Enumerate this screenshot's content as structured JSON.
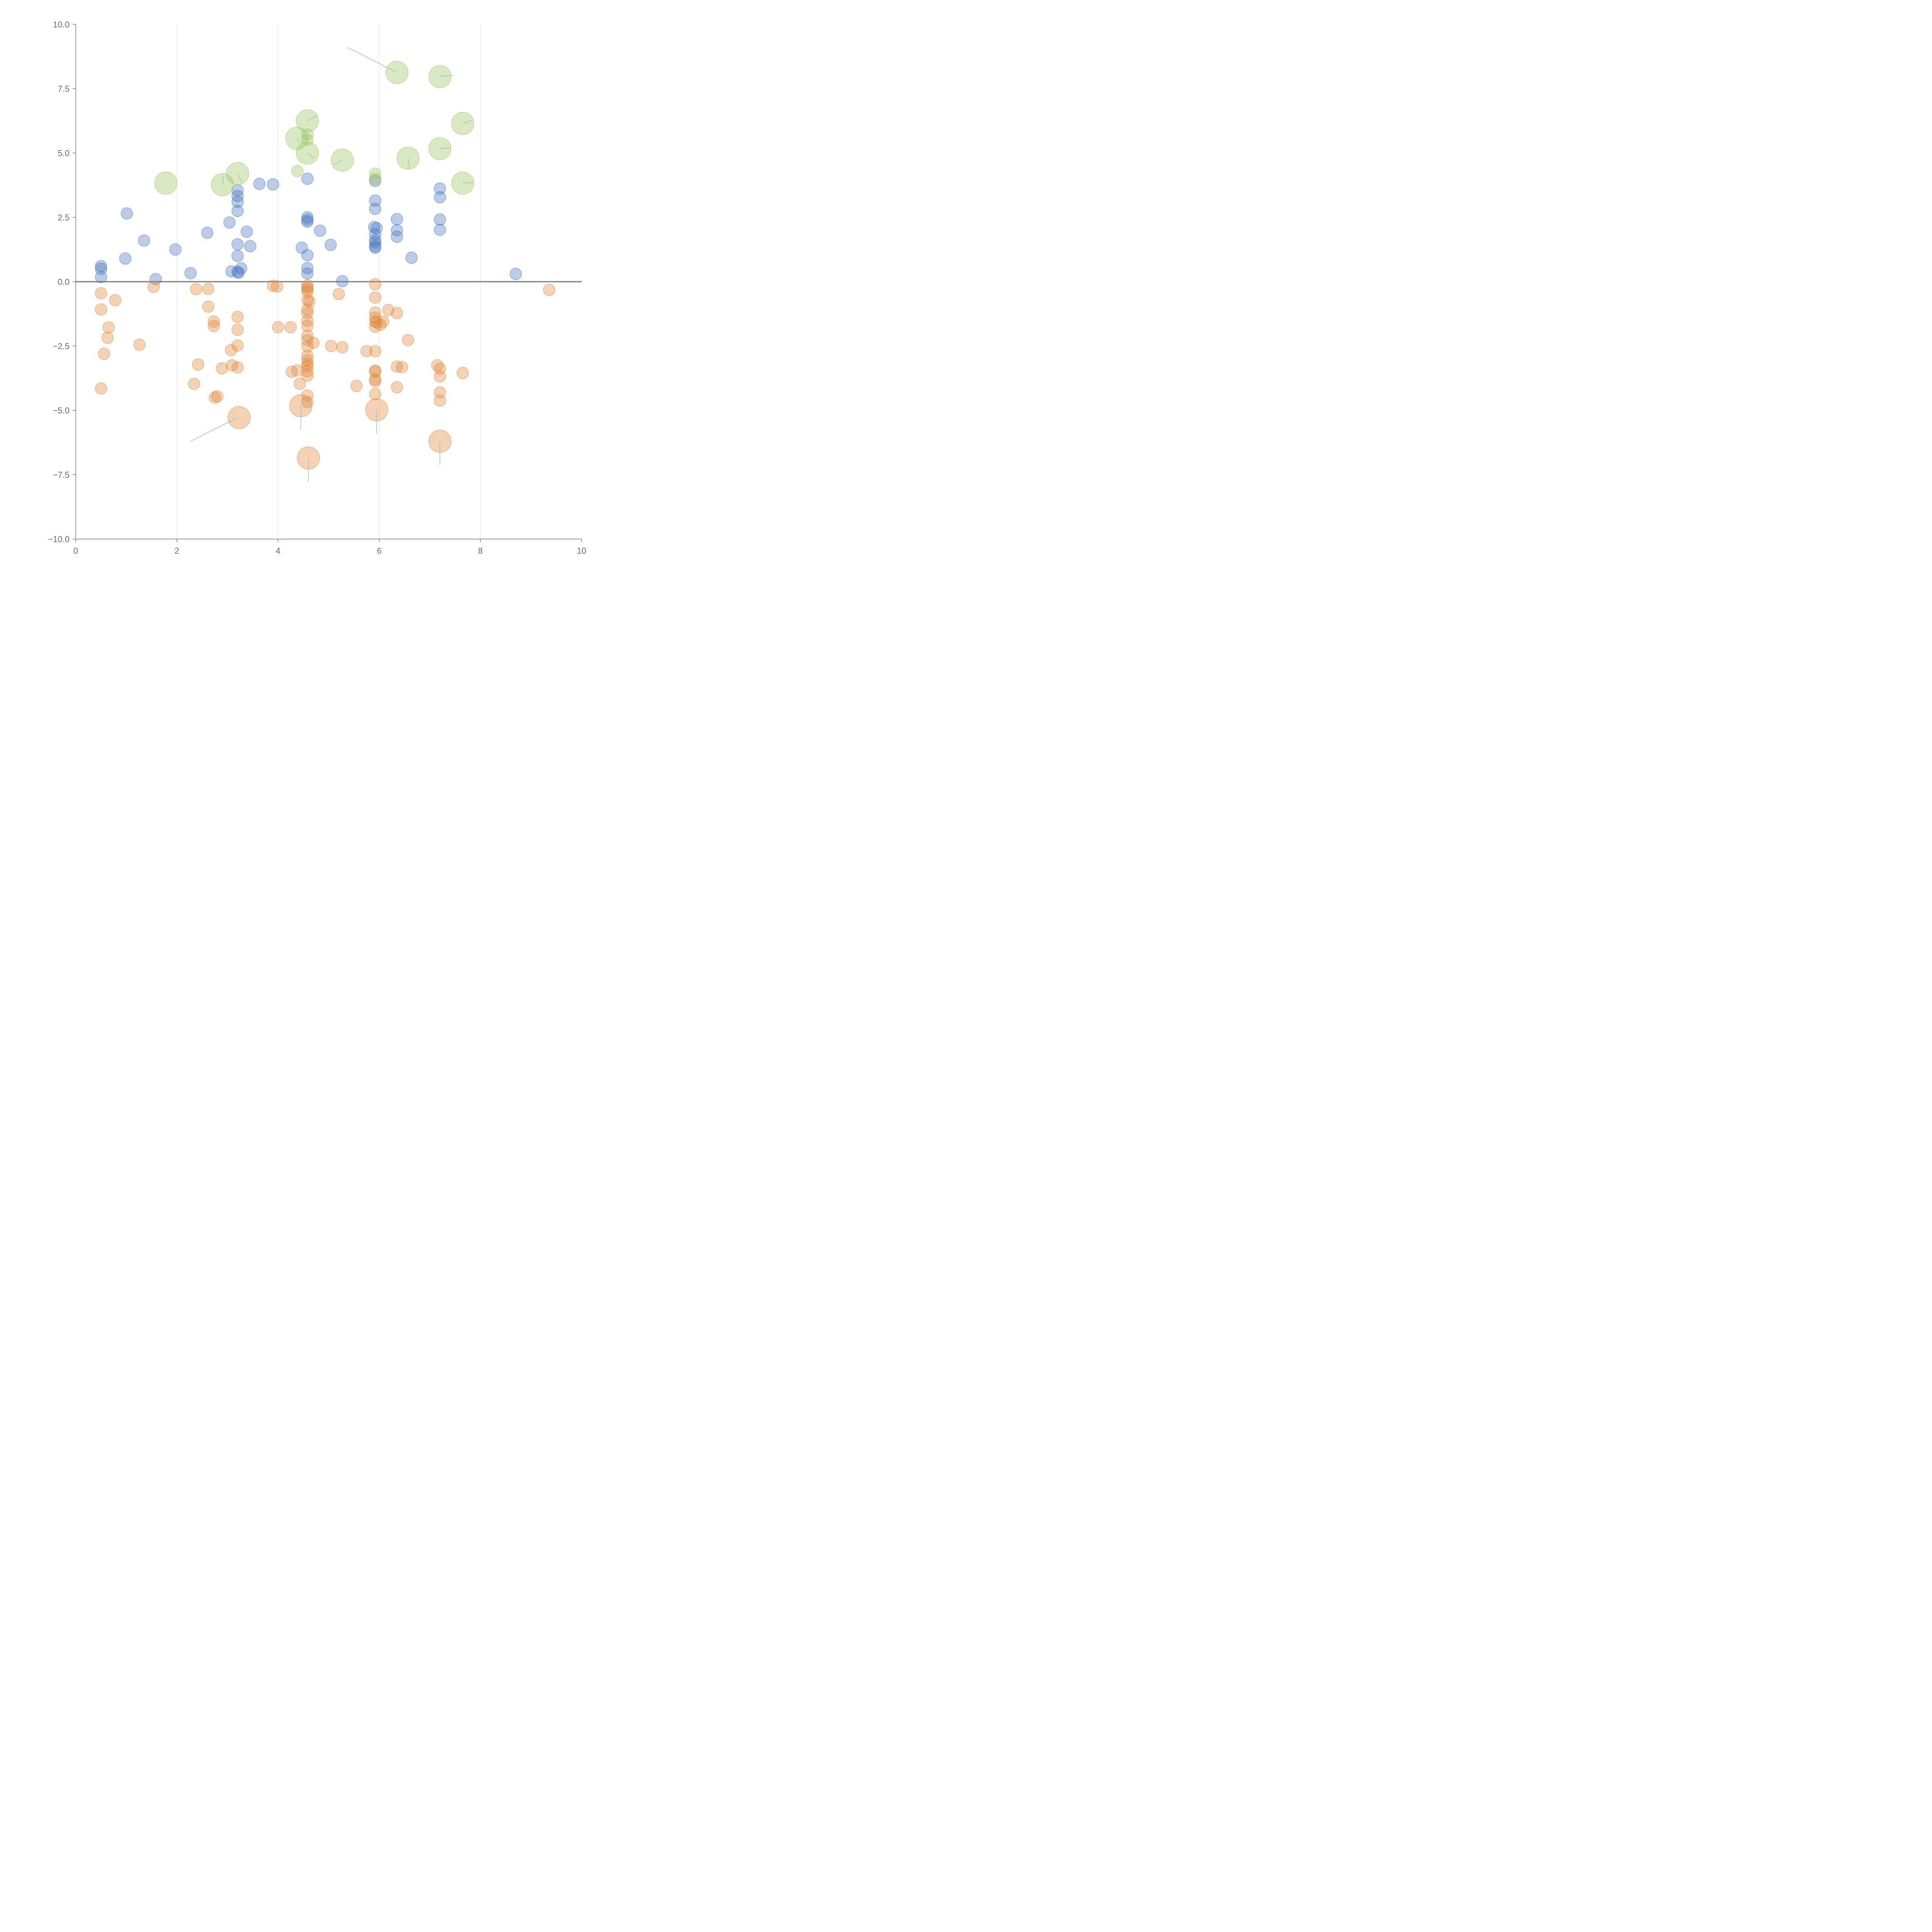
{
  "chart_data": {
    "type": "scatter",
    "title": "",
    "xlabel": "",
    "ylabel": "",
    "xlim": [
      0,
      10
    ],
    "ylim": [
      -10,
      10
    ],
    "grid": "vertical",
    "x_ticks": [
      0,
      2,
      4,
      6,
      8,
      10
    ],
    "x_tick_labels": [
      "0",
      "2",
      "4",
      "6",
      "8",
      "10"
    ],
    "y_ticks": [
      10,
      7.5,
      5,
      2.5,
      0,
      -2.5,
      -5,
      -7.5,
      -10
    ],
    "y_tick_labels": [
      "10.0",
      "7.5",
      "5.0",
      "2.5",
      "0.0",
      "−2.5",
      "−5.0",
      "−7.5",
      "−10.0"
    ],
    "reference_line_y": 0,
    "colors": {
      "blue": "#4a78c0",
      "orange": "#e08a3e",
      "green": "#9cc460"
    },
    "series": [
      {
        "name": "blue",
        "color": "#4a78c0",
        "size": "small",
        "points": [
          [
            0.5,
            0.6
          ],
          [
            0.5,
            0.5
          ],
          [
            0.5,
            0.18
          ],
          [
            0.98,
            0.9
          ],
          [
            1.01,
            2.65
          ],
          [
            1.35,
            1.6
          ],
          [
            1.58,
            0.1
          ],
          [
            1.97,
            1.25
          ],
          [
            2.27,
            0.33
          ],
          [
            2.6,
            1.9
          ],
          [
            3.04,
            2.3
          ],
          [
            3.08,
            0.4
          ],
          [
            3.2,
            3.55
          ],
          [
            3.2,
            3.33
          ],
          [
            3.2,
            3.1
          ],
          [
            3.2,
            2.75
          ],
          [
            3.2,
            1.45
          ],
          [
            3.2,
            1.0
          ],
          [
            3.2,
            0.38
          ],
          [
            3.22,
            0.35
          ],
          [
            3.27,
            0.52
          ],
          [
            3.38,
            1.94
          ],
          [
            3.45,
            1.38
          ],
          [
            3.63,
            3.8
          ],
          [
            3.9,
            3.78
          ],
          [
            4.47,
            1.32
          ],
          [
            4.58,
            4.0
          ],
          [
            4.58,
            2.5
          ],
          [
            4.58,
            2.4
          ],
          [
            4.58,
            2.33
          ],
          [
            4.58,
            1.03
          ],
          [
            4.58,
            0.53
          ],
          [
            4.58,
            0.32
          ],
          [
            4.83,
            1.98
          ],
          [
            5.04,
            1.43
          ],
          [
            5.27,
            0.02
          ],
          [
            5.9,
            2.12
          ],
          [
            5.92,
            3.92
          ],
          [
            5.92,
            3.15
          ],
          [
            5.92,
            2.83
          ],
          [
            5.92,
            1.85
          ],
          [
            5.92,
            1.62
          ],
          [
            5.92,
            1.52
          ],
          [
            5.92,
            1.38
          ],
          [
            5.92,
            1.32
          ],
          [
            5.95,
            2.08
          ],
          [
            6.35,
            2.43
          ],
          [
            6.35,
            2.0
          ],
          [
            6.35,
            1.75
          ],
          [
            6.64,
            0.93
          ],
          [
            7.2,
            3.62
          ],
          [
            7.2,
            3.28
          ],
          [
            7.2,
            2.42
          ],
          [
            7.2,
            2.02
          ],
          [
            8.7,
            0.3
          ]
        ]
      },
      {
        "name": "orange",
        "color": "#e08a3e",
        "size": "small",
        "points": [
          [
            0.5,
            -0.45
          ],
          [
            0.5,
            -1.08
          ],
          [
            0.5,
            -4.15
          ],
          [
            0.56,
            -2.8
          ],
          [
            0.63,
            -2.18
          ],
          [
            0.65,
            -1.78
          ],
          [
            0.78,
            -0.72
          ],
          [
            1.26,
            -2.45
          ],
          [
            1.54,
            -0.2
          ],
          [
            2.34,
            -3.97
          ],
          [
            2.38,
            -0.29
          ],
          [
            2.42,
            -3.22
          ],
          [
            2.62,
            -0.28
          ],
          [
            2.62,
            -0.97
          ],
          [
            2.73,
            -1.55
          ],
          [
            2.73,
            -1.72
          ],
          [
            2.75,
            -4.5
          ],
          [
            2.8,
            -4.46
          ],
          [
            2.89,
            -3.37
          ],
          [
            3.07,
            -2.66
          ],
          [
            3.09,
            -3.25
          ],
          [
            3.2,
            -1.37
          ],
          [
            3.2,
            -1.87
          ],
          [
            3.2,
            -2.48
          ],
          [
            3.2,
            -3.33
          ],
          [
            3.9,
            -0.16
          ],
          [
            3.98,
            -0.19
          ],
          [
            4.0,
            -1.77
          ],
          [
            4.25,
            -1.77
          ],
          [
            4.27,
            -3.5
          ],
          [
            4.38,
            -3.45
          ],
          [
            4.43,
            -3.97
          ],
          [
            4.58,
            -0.15
          ],
          [
            4.58,
            -0.22
          ],
          [
            4.58,
            -0.3
          ],
          [
            4.58,
            -0.4
          ],
          [
            4.58,
            -0.72
          ],
          [
            4.58,
            -1.08
          ],
          [
            4.58,
            -1.22
          ],
          [
            4.58,
            -1.52
          ],
          [
            4.58,
            -1.72
          ],
          [
            4.58,
            -2.1
          ],
          [
            4.58,
            -2.27
          ],
          [
            4.58,
            -2.52
          ],
          [
            4.58,
            -2.88
          ],
          [
            4.58,
            -3.05
          ],
          [
            4.58,
            -3.2
          ],
          [
            4.58,
            -3.3
          ],
          [
            4.58,
            -3.48
          ],
          [
            4.58,
            -3.65
          ],
          [
            4.58,
            -4.42
          ],
          [
            4.58,
            -4.68
          ],
          [
            4.62,
            -0.77
          ],
          [
            4.7,
            -2.38
          ],
          [
            5.05,
            -2.5
          ],
          [
            5.2,
            -0.48
          ],
          [
            5.27,
            -2.55
          ],
          [
            5.55,
            -4.05
          ],
          [
            5.75,
            -2.7
          ],
          [
            5.92,
            -0.1
          ],
          [
            5.92,
            -0.62
          ],
          [
            5.92,
            -1.2
          ],
          [
            5.92,
            -1.4
          ],
          [
            5.92,
            -1.55
          ],
          [
            5.92,
            -1.75
          ],
          [
            5.92,
            -2.7
          ],
          [
            5.92,
            -3.45
          ],
          [
            5.92,
            -3.5
          ],
          [
            5.92,
            -3.8
          ],
          [
            5.92,
            -3.87
          ],
          [
            5.92,
            -4.37
          ],
          [
            5.95,
            -1.58
          ],
          [
            6.02,
            -1.67
          ],
          [
            6.08,
            -1.55
          ],
          [
            6.18,
            -1.1
          ],
          [
            6.35,
            -1.22
          ],
          [
            6.35,
            -3.3
          ],
          [
            6.35,
            -4.1
          ],
          [
            6.45,
            -3.32
          ],
          [
            6.57,
            -2.27
          ],
          [
            7.15,
            -3.25
          ],
          [
            7.2,
            -3.38
          ],
          [
            7.2,
            -3.68
          ],
          [
            7.2,
            -4.3
          ],
          [
            7.2,
            -4.62
          ],
          [
            7.65,
            -3.55
          ],
          [
            9.36,
            -0.32
          ]
        ]
      },
      {
        "name": "orange",
        "color": "#e08a3e",
        "size": "large",
        "points": [
          [
            3.23,
            -5.28
          ],
          [
            4.45,
            -4.82
          ],
          [
            4.6,
            -6.85
          ],
          [
            5.95,
            -4.98
          ],
          [
            7.2,
            -6.2
          ]
        ]
      },
      {
        "name": "green",
        "color": "#9cc460",
        "size": "small",
        "points": [
          [
            4.38,
            4.3
          ],
          [
            4.58,
            5.72
          ],
          [
            4.58,
            5.52
          ],
          [
            5.92,
            4.2
          ],
          [
            5.92,
            4.0
          ]
        ]
      },
      {
        "name": "green",
        "color": "#9cc460",
        "size": "large",
        "points": [
          [
            1.78,
            3.83
          ],
          [
            2.9,
            3.77
          ],
          [
            3.2,
            4.2
          ],
          [
            4.37,
            5.57
          ],
          [
            4.58,
            6.25
          ],
          [
            4.58,
            5.0
          ],
          [
            5.27,
            4.72
          ],
          [
            6.35,
            8.13
          ],
          [
            6.57,
            4.8
          ],
          [
            7.2,
            7.97
          ],
          [
            7.2,
            5.17
          ],
          [
            7.65,
            6.15
          ],
          [
            7.65,
            3.83
          ]
        ]
      }
    ],
    "leader_lines": [
      [
        [
          5.38,
          9.1
        ],
        [
          6.33,
          8.15
        ]
      ],
      [
        [
          7.2,
          7.97
        ],
        [
          7.45,
          8.02
        ]
      ],
      [
        [
          7.65,
          6.15
        ],
        [
          7.83,
          6.27
        ]
      ],
      [
        [
          4.58,
          6.25
        ],
        [
          4.78,
          6.45
        ]
      ],
      [
        [
          4.37,
          5.57
        ],
        [
          4.43,
          5.35
        ]
      ],
      [
        [
          4.58,
          5.0
        ],
        [
          4.72,
          4.8
        ]
      ],
      [
        [
          5.27,
          4.72
        ],
        [
          5.1,
          4.55
        ]
      ],
      [
        [
          6.57,
          4.8
        ],
        [
          6.6,
          4.45
        ]
      ],
      [
        [
          7.2,
          5.17
        ],
        [
          7.42,
          5.2
        ]
      ],
      [
        [
          7.65,
          3.83
        ],
        [
          7.85,
          3.85
        ]
      ],
      [
        [
          2.9,
          3.77
        ],
        [
          2.92,
          4.1
        ]
      ],
      [
        [
          3.2,
          4.2
        ],
        [
          3.28,
          3.88
        ]
      ],
      [
        [
          3.2,
          -5.28
        ],
        [
          2.27,
          -6.2
        ]
      ],
      [
        [
          4.45,
          -4.82
        ],
        [
          4.45,
          -5.75
        ]
      ],
      [
        [
          5.95,
          -4.98
        ],
        [
          5.95,
          -5.92
        ]
      ],
      [
        [
          4.6,
          -6.85
        ],
        [
          4.6,
          -7.78
        ]
      ],
      [
        [
          7.2,
          -6.2
        ],
        [
          7.2,
          -7.12
        ]
      ]
    ],
    "annotations": []
  }
}
